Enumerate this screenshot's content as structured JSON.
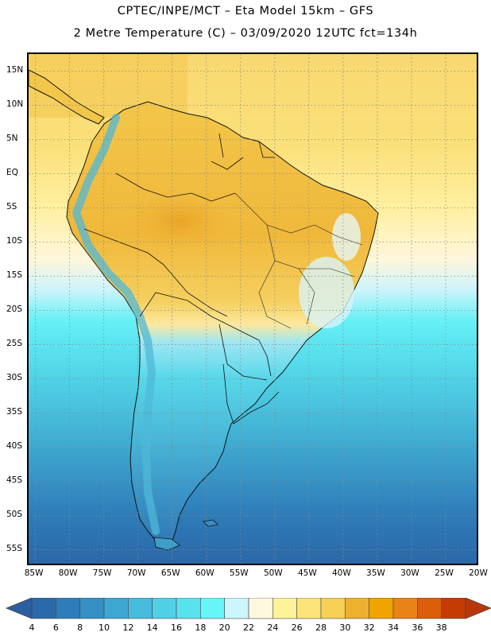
{
  "header": {
    "title_line1": "CPTEC/INPE/MCT –  Eta Model 15km – GFS",
    "title_line2": "2 Metre Temperature (C) – 03/09/2020 12UTC fct=134h"
  },
  "map": {
    "lat_labels": [
      "15N",
      "10N",
      "5N",
      "EQ",
      "5S",
      "10S",
      "15S",
      "20S",
      "25S",
      "30S",
      "35S",
      "40S",
      "45S",
      "50S",
      "55S"
    ],
    "lat_values": [
      15,
      10,
      5,
      0,
      -5,
      -10,
      -15,
      -20,
      -25,
      -30,
      -35,
      -40,
      -45,
      -50,
      -55
    ],
    "lon_labels": [
      "85W",
      "80W",
      "75W",
      "70W",
      "65W",
      "60W",
      "55W",
      "50W",
      "45W",
      "40W",
      "35W",
      "30W",
      "25W",
      "20W"
    ],
    "lon_values": [
      -85,
      -80,
      -75,
      -70,
      -65,
      -60,
      -55,
      -50,
      -45,
      -40,
      -35,
      -30,
      -25,
      -20
    ],
    "lat_range": [
      -57.5,
      17.5
    ],
    "lon_range": [
      -86,
      -20
    ]
  },
  "colorbar": {
    "labels": [
      "4",
      "6",
      "8",
      "10",
      "12",
      "14",
      "16",
      "18",
      "20",
      "22",
      "24",
      "26",
      "28",
      "30",
      "32",
      "34",
      "36",
      "38"
    ],
    "colors": [
      "#2b6aa8",
      "#2f7db8",
      "#3590c4",
      "#3ea6d2",
      "#47bcdc",
      "#4fd0e4",
      "#58e2ee",
      "#66f6f8",
      "#ccf6fb",
      "#fff8df",
      "#fff39a",
      "#fde47a",
      "#f6cf55",
      "#edb12f",
      "#f0a400",
      "#e98318",
      "#dd5e0a",
      "#c43c04"
    ],
    "low_arrow_color": "#2b5fa0",
    "high_arrow_color": "#b8380a"
  }
}
